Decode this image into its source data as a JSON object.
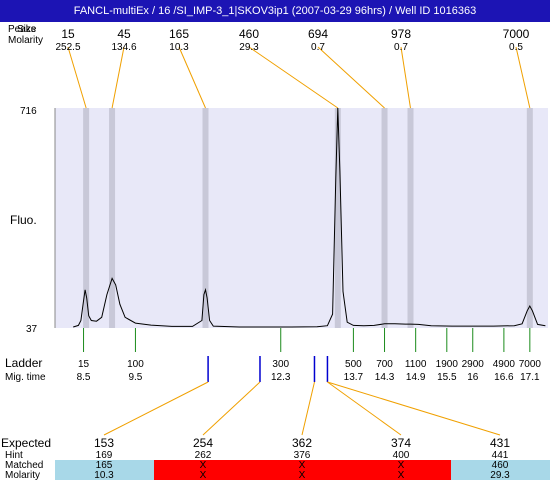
{
  "header": {
    "title": "FANCL-multiEx / 16 /SI_IMP-3_1|SKOV3ip1 (2007-03-29 96hrs) / Well ID 1016363"
  },
  "labels": {
    "peaks": "Peaks",
    "size": "Size",
    "molarity_top": "Molarity",
    "fluo": "Fluo.",
    "ladder": "Ladder",
    "mig_time": "Mig. time",
    "expected": "Expected",
    "hint": "Hint",
    "matched": "Matched",
    "molarity_bottom": "Molarity"
  },
  "chart_data": {
    "type": "line",
    "y_axis": {
      "tick_labels": [
        "716",
        "37"
      ],
      "ylim": [
        37,
        716
      ]
    },
    "peaks": [
      {
        "size": "15",
        "molarity": "252.5",
        "position": 8.55
      },
      {
        "size": "45",
        "molarity": "134.6",
        "position": 9.05
      },
      {
        "size": "165",
        "molarity": "10.3",
        "position": 10.85
      },
      {
        "size": "460",
        "molarity": "29.3",
        "position": 13.4
      },
      {
        "size": "694",
        "molarity": "0.7",
        "position": 14.3
      },
      {
        "size": "978",
        "molarity": "0.7",
        "position": 14.8
      },
      {
        "size": "7000",
        "molarity": "0.5",
        "position": 17.1
      }
    ],
    "ladder": [
      {
        "size": "15",
        "mig": "8.5",
        "time": 8.5
      },
      {
        "size": "100",
        "mig": "9.5",
        "time": 9.5
      },
      {
        "size": "300",
        "mig": "12.3",
        "time": 12.3
      },
      {
        "size": "500",
        "mig": "13.7",
        "time": 13.7
      },
      {
        "size": "700",
        "mig": "14.3",
        "time": 14.3
      },
      {
        "size": "1100",
        "mig": "14.9",
        "time": 14.9
      },
      {
        "size": "1900",
        "mig": "15.5",
        "time": 15.5
      },
      {
        "size": "2900",
        "mig": "16",
        "time": 16.0
      },
      {
        "size": "4900",
        "mig": "16.6",
        "time": 16.6
      },
      {
        "size": "7000",
        "mig": "17.1",
        "time": 17.1
      }
    ],
    "expected_markers": [
      {
        "time": 10.9
      },
      {
        "time": 11.9
      },
      {
        "time": 12.95
      },
      {
        "time": 13.2
      }
    ],
    "expected": [
      {
        "expected": "153",
        "hint": "169",
        "matched": "165",
        "molarity": "10.3",
        "status": "matched",
        "link": 0
      },
      {
        "expected": "254",
        "hint": "262",
        "matched": "X",
        "molarity": "X",
        "status": "missing",
        "link": 1
      },
      {
        "expected": "362",
        "hint": "376",
        "matched": "X",
        "molarity": "X",
        "status": "missing",
        "link": 2
      },
      {
        "expected": "374",
        "hint": "400",
        "matched": "X",
        "molarity": "X",
        "status": "missing",
        "link": 3
      },
      {
        "expected": "431",
        "hint": "441",
        "matched": "460",
        "molarity": "29.3",
        "status": "matched",
        "link": 3
      }
    ],
    "trace": [
      [
        8.3,
        40
      ],
      [
        8.4,
        45
      ],
      [
        8.45,
        60
      ],
      [
        8.5,
        120
      ],
      [
        8.53,
        155
      ],
      [
        8.56,
        130
      ],
      [
        8.6,
        75
      ],
      [
        8.65,
        60
      ],
      [
        8.75,
        58
      ],
      [
        8.85,
        70
      ],
      [
        8.95,
        140
      ],
      [
        9.05,
        190
      ],
      [
        9.12,
        170
      ],
      [
        9.2,
        110
      ],
      [
        9.3,
        70
      ],
      [
        9.5,
        52
      ],
      [
        9.8,
        46
      ],
      [
        10.2,
        42
      ],
      [
        10.6,
        42
      ],
      [
        10.78,
        60
      ],
      [
        10.82,
        140
      ],
      [
        10.85,
        155
      ],
      [
        10.88,
        130
      ],
      [
        10.93,
        60
      ],
      [
        11.0,
        43
      ],
      [
        11.5,
        40
      ],
      [
        12.0,
        40
      ],
      [
        12.5,
        40
      ],
      [
        13.0,
        41
      ],
      [
        13.2,
        44
      ],
      [
        13.3,
        80
      ],
      [
        13.36,
        500
      ],
      [
        13.4,
        716
      ],
      [
        13.44,
        520
      ],
      [
        13.5,
        150
      ],
      [
        13.58,
        55
      ],
      [
        13.7,
        45
      ],
      [
        13.9,
        44
      ],
      [
        14.1,
        45
      ],
      [
        14.3,
        50
      ],
      [
        14.5,
        50
      ],
      [
        14.7,
        49
      ],
      [
        14.8,
        49
      ],
      [
        14.95,
        48
      ],
      [
        15.2,
        44
      ],
      [
        15.6,
        43
      ],
      [
        16.0,
        43
      ],
      [
        16.4,
        43
      ],
      [
        16.8,
        44
      ],
      [
        16.95,
        50
      ],
      [
        17.05,
        90
      ],
      [
        17.1,
        105
      ],
      [
        17.15,
        90
      ],
      [
        17.25,
        48
      ],
      [
        17.4,
        44
      ]
    ]
  }
}
